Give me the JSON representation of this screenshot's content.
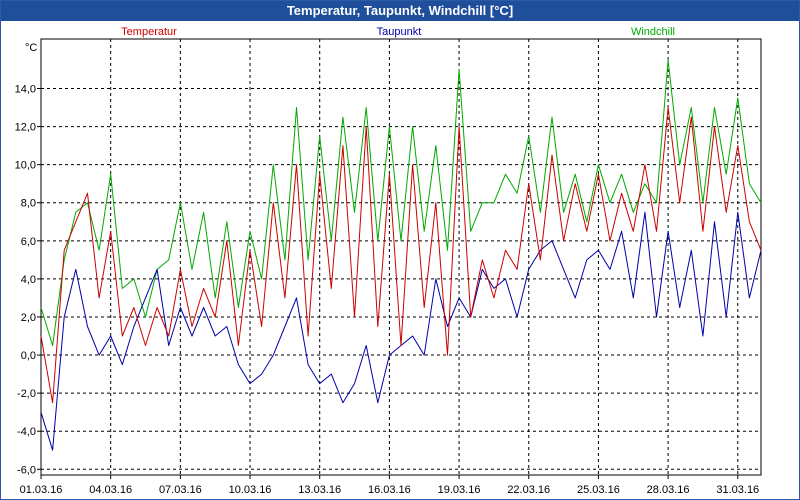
{
  "window": {
    "title": "Temperatur, Taupunkt, Windchill [°C]"
  },
  "chart_data": {
    "type": "line",
    "title": "Temperatur, Taupunkt, Windchill [°C]",
    "ylabel": "°C",
    "xlabel": "",
    "ylim": [
      -6.3,
      16.6
    ],
    "y_ticks": [
      14,
      12,
      10,
      8,
      6,
      4,
      2,
      0,
      -2,
      -4,
      -6
    ],
    "y_tick_labels": [
      "14,0",
      "12,0",
      "10,0",
      "8,0",
      "6,0",
      "4,0",
      "2,0",
      "0,0",
      "-2,0",
      "-4,0",
      "-6,0"
    ],
    "x_ticks": [
      0,
      3,
      6,
      9,
      12,
      15,
      18,
      21,
      24,
      27,
      30
    ],
    "x_tick_labels": [
      "01.03.16",
      "04.03.16",
      "07.03.16",
      "10.03.16",
      "13.03.16",
      "16.03.16",
      "19.03.16",
      "22.03.16",
      "25.03.16",
      "28.03.16",
      "31.03.16"
    ],
    "xlim": [
      0,
      31
    ],
    "grid": true,
    "legend": "top",
    "x": [
      0,
      0.5,
      1,
      1.5,
      2,
      2.5,
      3,
      3.5,
      4,
      4.5,
      5,
      5.5,
      6,
      6.5,
      7,
      7.5,
      8,
      8.5,
      9,
      9.5,
      10,
      10.5,
      11,
      11.5,
      12,
      12.5,
      13,
      13.5,
      14,
      14.5,
      15,
      15.5,
      16,
      16.5,
      17,
      17.5,
      18,
      18.5,
      19,
      19.5,
      20,
      20.5,
      21,
      21.5,
      22,
      22.5,
      23,
      23.5,
      24,
      24.5,
      25,
      25.5,
      26,
      26.5,
      27,
      27.5,
      28,
      28.5,
      29,
      29.5,
      30,
      30.5,
      31
    ],
    "series": [
      {
        "name": "Temperatur",
        "color": "#cc0000",
        "values": [
          1.0,
          -2.5,
          5.5,
          7.0,
          8.5,
          3.0,
          6.5,
          1.0,
          2.5,
          0.5,
          2.5,
          1.0,
          4.5,
          1.5,
          3.5,
          2.0,
          6.0,
          0.5,
          5.5,
          1.5,
          8.0,
          3.0,
          10.0,
          1.0,
          9.5,
          3.5,
          11.0,
          2.0,
          12.0,
          1.5,
          9.5,
          0.5,
          10.0,
          2.5,
          8.0,
          0.0,
          12.0,
          2.0,
          5.0,
          3.0,
          5.5,
          4.5,
          9.0,
          5.0,
          10.5,
          6.0,
          9.0,
          6.5,
          9.5,
          6.0,
          8.5,
          6.5,
          10.0,
          6.5,
          13.0,
          8.0,
          12.5,
          6.5,
          12.0,
          7.5,
          11.0,
          7.0,
          5.5
        ]
      },
      {
        "name": "Taupunkt",
        "color": "#0000aa",
        "values": [
          -3.0,
          -5.0,
          2.0,
          4.5,
          1.5,
          0.0,
          1.0,
          -0.5,
          1.5,
          3.0,
          4.5,
          0.5,
          2.5,
          1.0,
          2.5,
          1.0,
          1.5,
          -0.5,
          -1.5,
          -1.0,
          0.0,
          1.5,
          3.0,
          -0.5,
          -1.5,
          -1.0,
          -2.5,
          -1.5,
          0.5,
          -2.5,
          0.0,
          0.5,
          1.0,
          0.0,
          4.0,
          1.5,
          3.0,
          2.0,
          4.5,
          3.5,
          4.0,
          2.0,
          4.5,
          5.5,
          6.0,
          4.5,
          3.0,
          5.0,
          5.5,
          4.5,
          6.5,
          3.0,
          7.5,
          2.0,
          6.5,
          2.5,
          5.5,
          1.0,
          7.0,
          2.0,
          7.5,
          3.0,
          5.5
        ]
      },
      {
        "name": "Windchill",
        "color": "#00aa00",
        "values": [
          2.5,
          0.5,
          5.0,
          7.5,
          8.0,
          5.5,
          9.5,
          3.5,
          4.0,
          2.0,
          4.5,
          5.0,
          8.0,
          4.5,
          7.5,
          3.0,
          7.0,
          2.5,
          6.5,
          4.0,
          10.0,
          5.0,
          13.0,
          5.0,
          11.5,
          6.0,
          12.5,
          7.5,
          13.0,
          6.0,
          12.0,
          6.0,
          12.0,
          6.5,
          11.0,
          5.5,
          15.0,
          6.5,
          8.0,
          8.0,
          9.5,
          8.5,
          11.5,
          7.5,
          12.5,
          7.5,
          9.5,
          7.0,
          10.0,
          8.0,
          9.5,
          7.5,
          9.0,
          8.0,
          15.5,
          10.0,
          13.0,
          8.0,
          13.0,
          9.5,
          13.5,
          9.0,
          8.0
        ]
      }
    ]
  }
}
